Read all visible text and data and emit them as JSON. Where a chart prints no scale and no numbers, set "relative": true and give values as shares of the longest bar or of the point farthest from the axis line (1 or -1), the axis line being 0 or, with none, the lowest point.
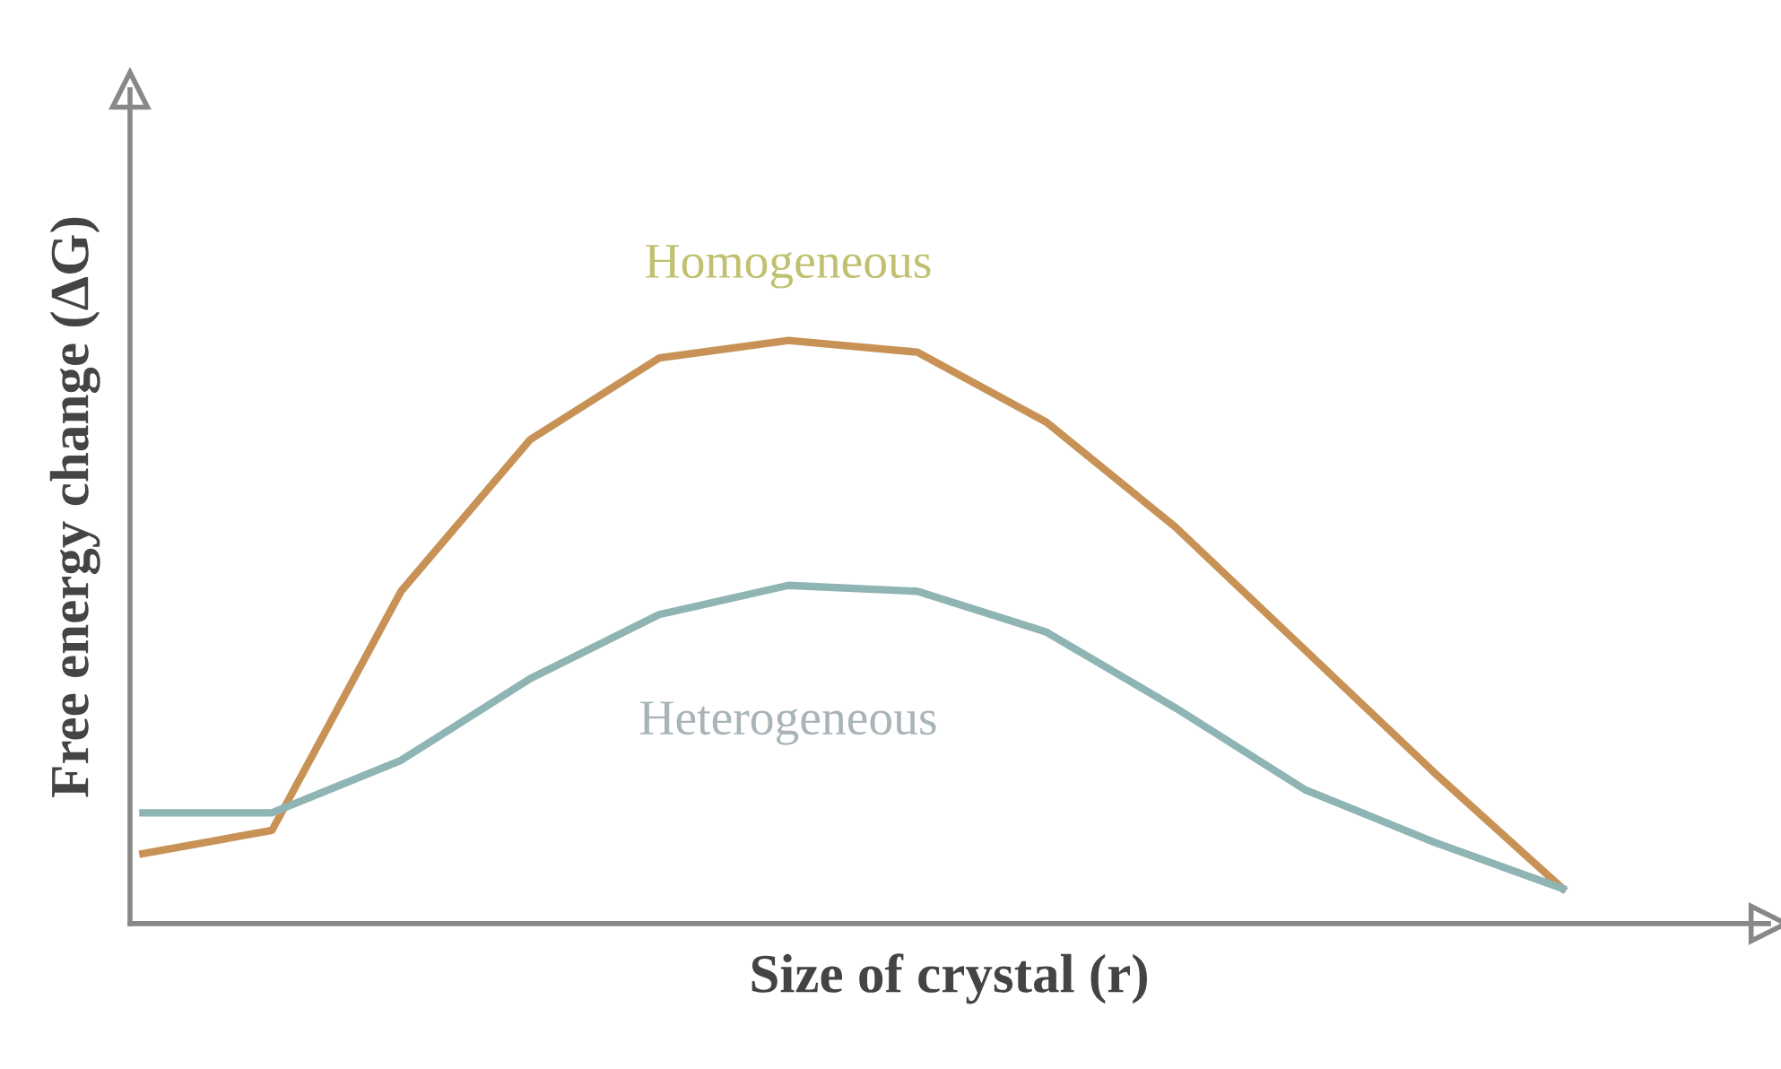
{
  "chart_data": {
    "type": "line",
    "relative": true,
    "xlabel": "Size of crystal (r)",
    "ylabel": "Free energy change (ΔG)",
    "categories": [
      null,
      null,
      null,
      null,
      null,
      null,
      null,
      null,
      null,
      null,
      null,
      null
    ],
    "legend": false,
    "marker": "none",
    "line_style": "solid",
    "series": [
      {
        "name": "Homogeneous",
        "color": "#c89256",
        "values": [
          0.12,
          0.16,
          0.57,
          0.83,
          0.97,
          1.0,
          0.98,
          0.86,
          0.68,
          0.47,
          0.26,
          0.06
        ]
      },
      {
        "name": "Heterogeneous",
        "color": "#8fb4b4",
        "values": [
          0.19,
          0.19,
          0.28,
          0.42,
          0.53,
          0.58,
          0.57,
          0.5,
          0.37,
          0.23,
          0.14,
          0.06
        ]
      }
    ]
  }
}
